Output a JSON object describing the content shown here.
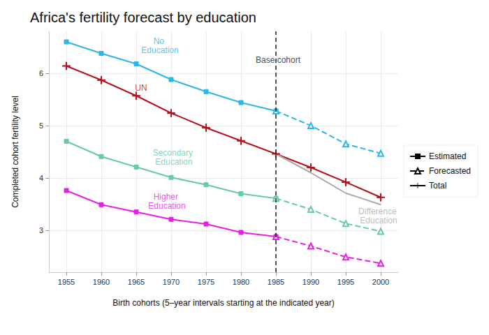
{
  "chart_data": {
    "type": "line",
    "title": "Africa's fertility forecast by education",
    "x_label": "Birth cohorts (5–year intervals starting at the indicated year)",
    "y_label": "Completed cohort fertility level",
    "x": [
      1955,
      1960,
      1965,
      1970,
      1975,
      1980,
      1985,
      1990,
      1995,
      2000
    ],
    "xlim": [
      1952.5,
      2002.5
    ],
    "xticks": [
      1955,
      1960,
      1965,
      1970,
      1975,
      1980,
      1985,
      1990,
      1995,
      2000
    ],
    "ylim": [
      2.2,
      6.8
    ],
    "yticks": [
      3,
      4,
      5,
      6
    ],
    "grid": true,
    "legend": "right",
    "legend_entries": [
      {
        "name": "Estimated",
        "marker": "square",
        "line_style": "solid"
      },
      {
        "name": "Forecasted",
        "marker": "triangle",
        "line_style": "dashed"
      },
      {
        "name": "Total",
        "marker": "cross",
        "line_style": "solid"
      }
    ],
    "base_cohort": {
      "label": "Base cohort",
      "x": 1985,
      "label_y": 6.25
    },
    "series": [
      {
        "name": "No Education",
        "color": "#29b6e8",
        "marker": "square",
        "line_style": "solid",
        "values": [
          6.6,
          6.38,
          6.18,
          5.88,
          5.65,
          5.44,
          5.28,
          null,
          null,
          null
        ],
        "forecast": [
          null,
          null,
          null,
          null,
          null,
          null,
          5.28,
          5.0,
          4.65,
          4.47
        ],
        "label_x": 1968.4,
        "label_y": 6.53
      },
      {
        "name": "UN",
        "color": "#b5121b",
        "marker": "cross",
        "line_style": "solid",
        "values": [
          6.14,
          5.87,
          5.57,
          5.24,
          4.96,
          4.71,
          4.46,
          4.2,
          3.92,
          3.63
        ],
        "label_x": 1965.7,
        "label_y": 5.72
      },
      {
        "name": "Secondary Education",
        "color": "#66c9a8",
        "marker": "square",
        "line_style": "solid",
        "values": [
          4.7,
          4.41,
          4.21,
          4.01,
          3.87,
          3.7,
          3.61,
          null,
          null,
          null
        ],
        "forecast": [
          null,
          null,
          null,
          null,
          null,
          null,
          3.61,
          3.4,
          3.13,
          2.98
        ],
        "label_x": 1970.4,
        "label_y": 4.4
      },
      {
        "name": "Higher Education",
        "color": "#e61ee6",
        "marker": "square",
        "line_style": "solid",
        "values": [
          3.76,
          3.49,
          3.35,
          3.21,
          3.12,
          2.96,
          2.88,
          null,
          null,
          null
        ],
        "forecast": [
          null,
          null,
          null,
          null,
          null,
          null,
          2.88,
          2.7,
          2.49,
          2.37
        ],
        "label_x": 1969.4,
        "label_y": 3.55
      },
      {
        "name": "Difference Education",
        "color": "#aaaaaa",
        "marker": "none",
        "line_style": "solid",
        "values": [
          null,
          null,
          null,
          null,
          null,
          null,
          4.46,
          4.1,
          3.71,
          3.49
        ],
        "label_x": 1999.7,
        "label_y": 3.28
      }
    ]
  }
}
